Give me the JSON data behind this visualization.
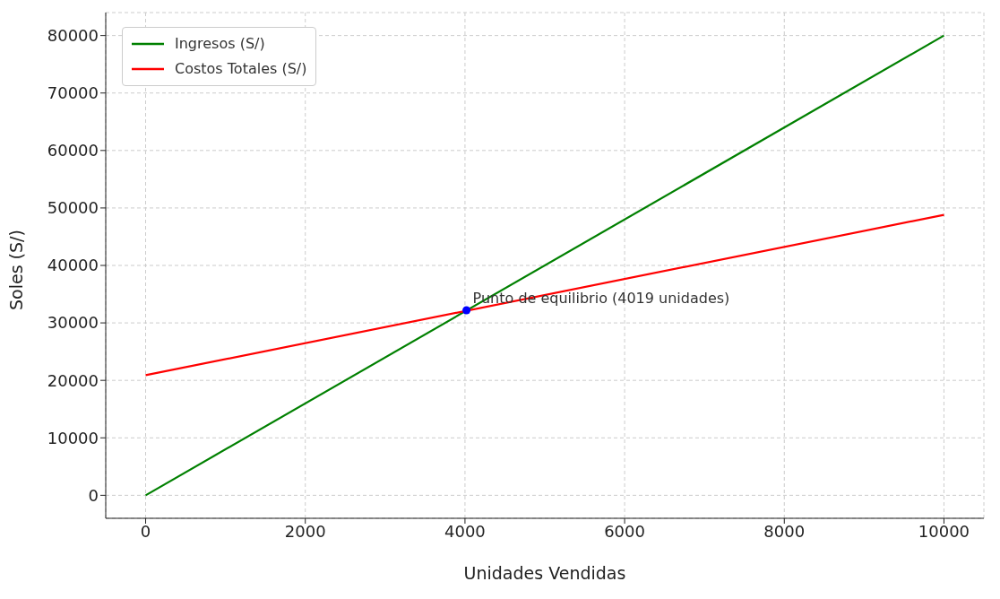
{
  "chart_data": {
    "type": "line",
    "xlabel": "Unidades Vendidas",
    "ylabel": "Soles (S/)",
    "xlim": [
      -500,
      10500
    ],
    "xticks": [
      0,
      2000,
      4000,
      6000,
      8000,
      10000
    ],
    "ylim": [
      -4000,
      84000
    ],
    "yticks": [
      0,
      10000,
      20000,
      30000,
      40000,
      50000,
      60000,
      70000,
      80000
    ],
    "grid": true,
    "legend": "top left",
    "marker": "none",
    "line_style": "solid",
    "series": [
      {
        "name": "Ingresos (S/)",
        "color": "#008000",
        "x": [
          0,
          10000
        ],
        "values": [
          0,
          80000
        ]
      },
      {
        "name": "Costos Totales (S/)",
        "color": "#ff0000",
        "x": [
          0,
          10000
        ],
        "values": [
          20900,
          48800
        ]
      },
      {
        "type": "scatter",
        "color": "#0000ff",
        "x": [
          4019
        ],
        "values": [
          32200
        ],
        "marker": "circle"
      }
    ],
    "annotations": [
      {
        "text": "Punto de equilibrio (4019 unidades)",
        "x": 4019,
        "y": 32200
      }
    ]
  }
}
